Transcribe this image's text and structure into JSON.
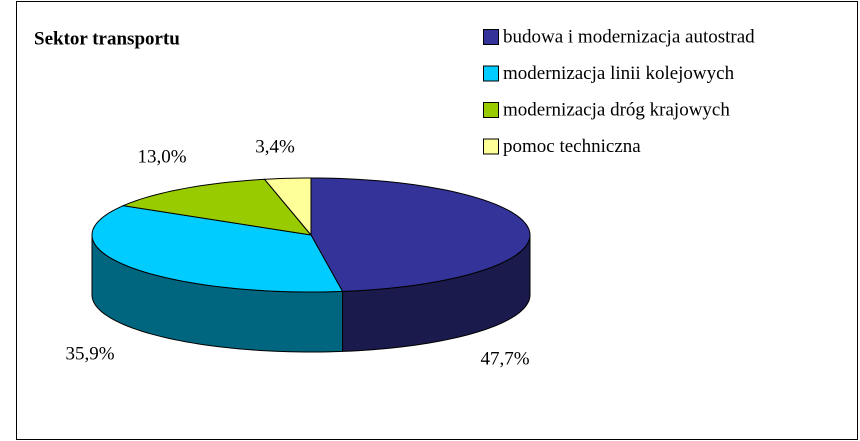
{
  "chart_data": {
    "type": "pie3d",
    "title": "Sektor transportu",
    "categories": [
      "budowa i modernizacja autostrad",
      "modernizacja linii kolejowych",
      "modernizacja dróg krajowych",
      "pomoc techniczna"
    ],
    "values": [
      47.7,
      35.9,
      13.0,
      3.4
    ],
    "value_labels": [
      "47,7%",
      "35,9%",
      "13,0%",
      "3,4%"
    ],
    "colors": [
      "#333399",
      "#00ccff",
      "#99cc00",
      "#ffff99"
    ],
    "legend": "top-right"
  }
}
